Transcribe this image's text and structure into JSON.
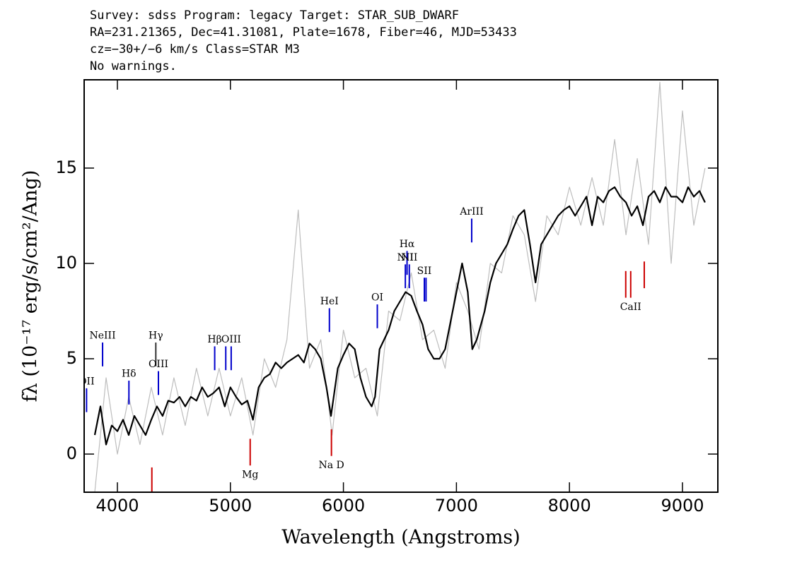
{
  "chart_data": {
    "type": "line",
    "title_lines": [
      "Survey: sdss Program: legacy Target: STAR_SUB_DWARF",
      "RA=231.21365, Dec=41.31081, Plate=1678, Fiber=46, MJD=53433",
      "cz=−30+/−6 km/s Class=STAR M3",
      "No warnings."
    ],
    "xlabel": "Wavelength (Angstroms)",
    "ylabel": "fλ (10⁻¹⁷ erg/s/cm²/Ang)",
    "xlim": [
      3706,
      9313
    ],
    "ylim": [
      -2,
      19.63
    ],
    "xticks": [
      4000,
      5000,
      6000,
      7000,
      8000,
      9000
    ],
    "yticks": [
      0,
      5,
      10,
      15
    ],
    "series": [
      {
        "color": "#bdbdbd",
        "x": [
          3800,
          3900,
          4000,
          4100,
          4200,
          4300,
          4400,
          4500,
          4600,
          4700,
          4800,
          4900,
          5000,
          5100,
          5200,
          5300,
          5400,
          5500,
          5600,
          5700,
          5800,
          5900,
          6000,
          6100,
          6200,
          6300,
          6400,
          6500,
          6600,
          6700,
          6800,
          6900,
          7000,
          7100,
          7200,
          7300,
          7400,
          7500,
          7600,
          7700,
          7800,
          7900,
          8000,
          8100,
          8200,
          8300,
          8400,
          8500,
          8600,
          8700,
          8800,
          8900,
          9000,
          9100,
          9200
        ],
        "values": [
          -2,
          4,
          0,
          3,
          0.5,
          3.5,
          1,
          4,
          1.5,
          4.5,
          2,
          4.5,
          2,
          4,
          1,
          5,
          3.5,
          6,
          12.8,
          4.5,
          6,
          1,
          6.5,
          4,
          4.5,
          2,
          7.5,
          7,
          9.5,
          6,
          6.5,
          4.5,
          9,
          7.5,
          5.5,
          10,
          9.5,
          12.5,
          11.5,
          8,
          12.5,
          11.5,
          14,
          12,
          14.5,
          12,
          16.5,
          11.5,
          15.5,
          11,
          19.5,
          10,
          18,
          12,
          15
        ]
      },
      {
        "color": "#000000",
        "x": [
          3800,
          3850,
          3900,
          3950,
          4000,
          4050,
          4100,
          4150,
          4200,
          4250,
          4300,
          4350,
          4400,
          4450,
          4500,
          4550,
          4600,
          4650,
          4700,
          4750,
          4800,
          4850,
          4900,
          4950,
          5000,
          5050,
          5100,
          5150,
          5200,
          5250,
          5300,
          5350,
          5400,
          5450,
          5500,
          5550,
          5600,
          5650,
          5700,
          5750,
          5800,
          5850,
          5890,
          5950,
          6000,
          6050,
          6100,
          6150,
          6200,
          6250,
          6280,
          6320,
          6400,
          6450,
          6500,
          6550,
          6600,
          6650,
          6700,
          6750,
          6800,
          6850,
          6900,
          6950,
          7000,
          7050,
          7100,
          7140,
          7180,
          7250,
          7300,
          7350,
          7400,
          7450,
          7500,
          7550,
          7600,
          7650,
          7700,
          7750,
          7800,
          7850,
          7900,
          7950,
          8000,
          8050,
          8100,
          8150,
          8200,
          8250,
          8300,
          8350,
          8400,
          8450,
          8500,
          8550,
          8600,
          8650,
          8700,
          8750,
          8800,
          8850,
          8900,
          8950,
          9000,
          9050,
          9100,
          9150,
          9200
        ],
        "values": [
          1.0,
          2.5,
          0.5,
          1.5,
          1.2,
          1.8,
          1.0,
          2.0,
          1.5,
          1.0,
          1.8,
          2.5,
          2.0,
          2.8,
          2.7,
          3.0,
          2.5,
          3.0,
          2.8,
          3.5,
          3.0,
          3.2,
          3.5,
          2.5,
          3.5,
          3.0,
          2.6,
          2.8,
          1.8,
          3.5,
          4.0,
          4.2,
          4.8,
          4.5,
          4.8,
          5.0,
          5.2,
          4.8,
          5.8,
          5.5,
          5.0,
          3.5,
          2.0,
          4.5,
          5.2,
          5.8,
          5.5,
          4.0,
          3.0,
          2.5,
          3.0,
          5.5,
          6.5,
          7.5,
          8.0,
          8.5,
          8.3,
          7.5,
          6.8,
          5.5,
          5.0,
          5.0,
          5.5,
          7.0,
          8.5,
          10.0,
          8.5,
          5.5,
          6.0,
          7.5,
          9.0,
          10.0,
          10.5,
          11.0,
          11.8,
          12.5,
          12.8,
          11.0,
          9.0,
          11.0,
          11.5,
          12.0,
          12.5,
          12.8,
          13.0,
          12.5,
          13.0,
          13.5,
          12.0,
          13.5,
          13.2,
          13.8,
          14.0,
          13.5,
          13.2,
          12.5,
          13.0,
          12.0,
          13.5,
          13.8,
          13.2,
          14.0,
          13.5,
          13.5,
          13.2,
          14.0,
          13.5,
          13.8,
          13.2
        ]
      }
    ],
    "annotations": [
      {
        "text": "OII",
        "x": 3727,
        "y": 3.8,
        "color": "#0000cc",
        "side": "above"
      },
      {
        "text": "NeIII",
        "x": 3869,
        "y": 6.2,
        "color": "#0000cc",
        "side": "above"
      },
      {
        "text": "Hδ",
        "x": 4102,
        "y": 4.2,
        "color": "#0000cc",
        "side": "above"
      },
      {
        "text": "Hγ",
        "x": 4340,
        "y": 6.2,
        "color": "#333333",
        "side": "above"
      },
      {
        "text": "OIII",
        "x": 4363,
        "y": 4.7,
        "color": "#0000cc",
        "side": "above"
      },
      {
        "text": "Hβ",
        "x": 4861,
        "y": 6.0,
        "color": "#0000cc",
        "side": "above"
      },
      {
        "text": null,
        "x": 4959,
        "y": 6.0,
        "color": "#0000cc",
        "side": "above"
      },
      {
        "text": "OIII",
        "x": 5007,
        "y": 6.0,
        "color": "#0000cc",
        "side": "above"
      },
      {
        "text": "HeI",
        "x": 5876,
        "y": 8.0,
        "color": "#0000cc",
        "side": "above"
      },
      {
        "text": "OI",
        "x": 6300,
        "y": 8.2,
        "color": "#0000cc",
        "side": "above"
      },
      {
        "text": "NII",
        "x": 6548,
        "y": 10.3,
        "color": "#0000cc",
        "side": "above"
      },
      {
        "text": "Hα",
        "x": 6563,
        "y": 11.0,
        "color": "#0000cc",
        "side": "above"
      },
      {
        "text": "NII",
        "x": 6583,
        "y": 10.3,
        "color": "#0000cc",
        "side": "above"
      },
      {
        "text": "SII",
        "x": 6716,
        "y": 9.6,
        "color": "#0000cc",
        "side": "above"
      },
      {
        "text": null,
        "x": 6731,
        "y": 9.6,
        "color": "#0000cc",
        "side": "above"
      },
      {
        "text": "ArIII",
        "x": 7135,
        "y": 12.7,
        "color": "#0000cc",
        "side": "above"
      },
      {
        "text": null,
        "x": 4305,
        "y": -2.6,
        "color": "#cc0000",
        "side": "below"
      },
      {
        "text": "Mg",
        "x": 5175,
        "y": -1.1,
        "color": "#cc0000",
        "side": "below"
      },
      {
        "text": "Na D",
        "x": 5894,
        "y": -0.6,
        "color": "#cc0000",
        "side": "below"
      },
      {
        "text": null,
        "x": 8498,
        "y": 7.7,
        "color": "#cc0000",
        "side": "below"
      },
      {
        "text": "CaII",
        "x": 8542,
        "y": 7.7,
        "color": "#cc0000",
        "side": "below"
      },
      {
        "text": null,
        "x": 8662,
        "y": 8.2,
        "color": "#cc0000",
        "side": "below"
      }
    ]
  }
}
